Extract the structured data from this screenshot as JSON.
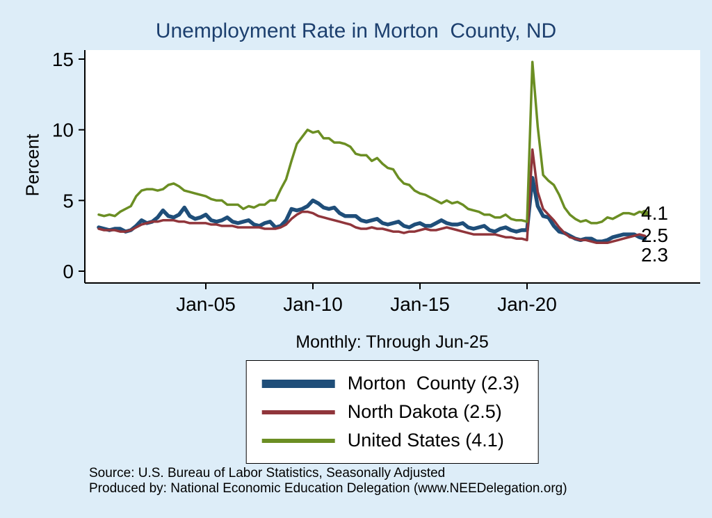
{
  "colors": {
    "background": "#ddedf8",
    "plot_background": "#ffffff",
    "title": "#1c3f6e",
    "axis": "#000000",
    "morton_county": "#1f4e79",
    "north_dakota": "#90353b",
    "united_states": "#6b8e23"
  },
  "chart_data": {
    "type": "line",
    "title": "Unemployment Rate in Morton  County, ND",
    "subtitle": "Monthly: Through Jun-25",
    "ylabel": "Percent",
    "xlabel": "",
    "frequency": "monthly",
    "grid": false,
    "legend_position": "bottom",
    "ylim": [
      0,
      15
    ],
    "yticks": [
      0,
      5,
      10,
      15
    ],
    "xticks": [
      {
        "value": 2005,
        "label": "Jan-05"
      },
      {
        "value": 2010,
        "label": "Jan-10"
      },
      {
        "value": 2015,
        "label": "Jan-15"
      },
      {
        "value": 2020,
        "label": "Jan-20"
      }
    ],
    "x_start": 2000.0,
    "x_step": 0.25,
    "x_end": 2025.5,
    "series": [
      {
        "id": "morton-county",
        "name": "Morton  County (2.3)",
        "last_value": 2.3,
        "color": "#1f4e79",
        "line_width": 5.5,
        "end_marker": false,
        "values": [
          3.1,
          3.0,
          2.9,
          3.0,
          3.0,
          2.8,
          2.9,
          3.2,
          3.6,
          3.4,
          3.5,
          3.8,
          4.3,
          3.9,
          3.8,
          4.0,
          4.5,
          3.9,
          3.7,
          3.8,
          4.0,
          3.6,
          3.5,
          3.6,
          3.8,
          3.5,
          3.4,
          3.5,
          3.6,
          3.3,
          3.2,
          3.4,
          3.5,
          3.1,
          3.2,
          3.6,
          4.4,
          4.3,
          4.4,
          4.6,
          5.0,
          4.8,
          4.5,
          4.4,
          4.5,
          4.1,
          3.9,
          3.9,
          3.9,
          3.6,
          3.5,
          3.6,
          3.7,
          3.4,
          3.3,
          3.4,
          3.5,
          3.2,
          3.1,
          3.3,
          3.4,
          3.2,
          3.2,
          3.4,
          3.6,
          3.4,
          3.3,
          3.3,
          3.4,
          3.1,
          3.0,
          3.1,
          3.2,
          2.9,
          2.8,
          3.0,
          3.1,
          2.9,
          2.8,
          2.9,
          2.9,
          6.6,
          4.6,
          3.9,
          3.8,
          3.2,
          2.8,
          2.7,
          2.5,
          2.3,
          2.2,
          2.3,
          2.3,
          2.1,
          2.1,
          2.2,
          2.4,
          2.5,
          2.6,
          2.6,
          2.6,
          2.4,
          2.3
        ]
      },
      {
        "id": "north-dakota",
        "name": "North Dakota (2.5)",
        "last_value": 2.5,
        "color": "#90353b",
        "line_width": 3.5,
        "end_marker": false,
        "values": [
          3.0,
          2.9,
          2.9,
          2.9,
          2.8,
          2.8,
          2.9,
          3.1,
          3.3,
          3.4,
          3.5,
          3.5,
          3.6,
          3.6,
          3.6,
          3.5,
          3.5,
          3.4,
          3.4,
          3.4,
          3.4,
          3.3,
          3.3,
          3.2,
          3.2,
          3.2,
          3.1,
          3.1,
          3.1,
          3.1,
          3.1,
          3.0,
          3.0,
          3.0,
          3.1,
          3.3,
          3.7,
          4.0,
          4.2,
          4.2,
          4.1,
          3.9,
          3.8,
          3.7,
          3.6,
          3.5,
          3.4,
          3.3,
          3.1,
          3.0,
          3.0,
          3.1,
          3.0,
          3.0,
          2.9,
          2.8,
          2.8,
          2.7,
          2.8,
          2.8,
          2.9,
          3.0,
          2.9,
          2.9,
          3.0,
          3.1,
          3.0,
          2.9,
          2.8,
          2.7,
          2.6,
          2.6,
          2.6,
          2.6,
          2.6,
          2.5,
          2.4,
          2.4,
          2.3,
          2.3,
          2.2,
          8.6,
          5.6,
          4.4,
          4.0,
          3.6,
          3.1,
          2.7,
          2.4,
          2.3,
          2.2,
          2.2,
          2.1,
          2.0,
          2.0,
          2.0,
          2.1,
          2.2,
          2.3,
          2.4,
          2.5,
          2.6,
          2.5
        ]
      },
      {
        "id": "united-states",
        "name": "United States (4.1)",
        "last_value": 4.1,
        "color": "#6b8e23",
        "line_width": 3.5,
        "end_marker": true,
        "values": [
          4.0,
          3.9,
          4.0,
          3.9,
          4.2,
          4.4,
          4.6,
          5.3,
          5.7,
          5.8,
          5.8,
          5.7,
          5.8,
          6.1,
          6.2,
          6.0,
          5.7,
          5.6,
          5.5,
          5.4,
          5.3,
          5.1,
          5.0,
          5.0,
          4.7,
          4.7,
          4.7,
          4.4,
          4.6,
          4.5,
          4.7,
          4.7,
          5.0,
          5.0,
          5.8,
          6.5,
          7.8,
          9.0,
          9.5,
          10.0,
          9.8,
          9.9,
          9.4,
          9.4,
          9.1,
          9.1,
          9.0,
          8.8,
          8.3,
          8.2,
          8.2,
          7.8,
          8.0,
          7.6,
          7.3,
          7.2,
          6.6,
          6.2,
          6.1,
          5.7,
          5.5,
          5.4,
          5.2,
          5.0,
          4.8,
          5.0,
          4.8,
          4.9,
          4.7,
          4.4,
          4.3,
          4.2,
          4.0,
          4.0,
          3.8,
          3.8,
          4.0,
          3.7,
          3.6,
          3.6,
          3.5,
          14.8,
          10.2,
          6.8,
          6.4,
          6.1,
          5.4,
          4.5,
          4.0,
          3.7,
          3.5,
          3.6,
          3.4,
          3.4,
          3.5,
          3.8,
          3.7,
          3.9,
          4.1,
          4.1,
          4.0,
          4.2,
          4.1
        ]
      }
    ],
    "end_labels": [
      {
        "text": "4.1",
        "value": 4.1
      },
      {
        "text": "2.5",
        "value": 2.5
      },
      {
        "text": "2.3",
        "value": 2.3
      }
    ]
  },
  "notes": [
    "Source: U.S. Bureau of Labor Statistics, Seasonally Adjusted",
    "Produced by: National Economic Education Delegation (www.NEEDelegation.org)"
  ]
}
